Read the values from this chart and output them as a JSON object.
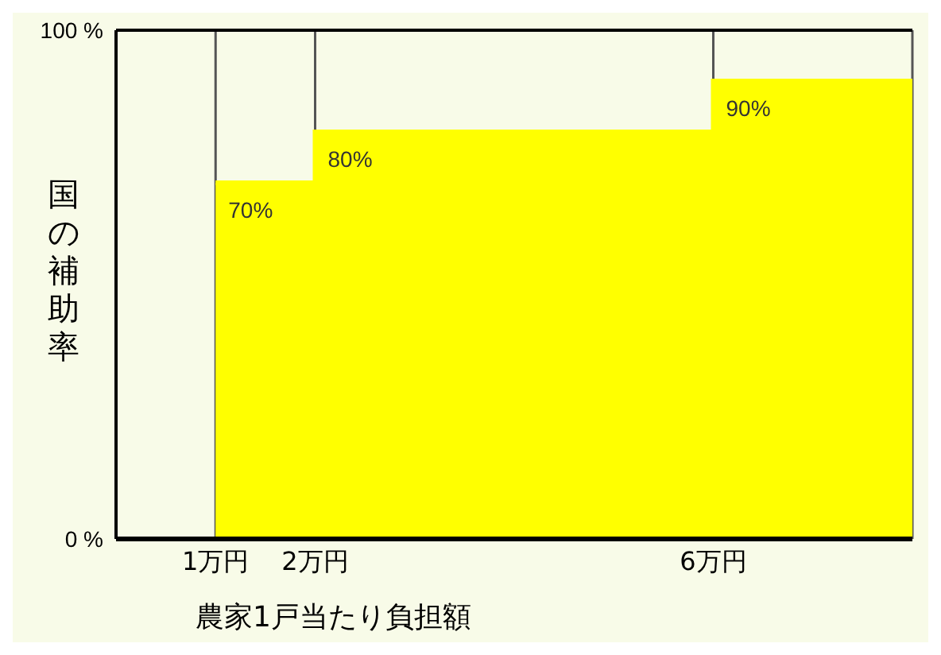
{
  "chart_data": {
    "type": "area",
    "ylabel": "国の補助率",
    "xlabel": "農家1戸当たり負担額",
    "x": [
      1,
      2,
      6,
      8
    ],
    "values": [
      70,
      80,
      90,
      90
    ],
    "value_labels": [
      "70%",
      "80%",
      "90%",
      null
    ],
    "color": "#ffff00",
    "xlim": [
      0,
      8
    ],
    "xticks": [
      {
        "value": 1,
        "label": "1万円"
      },
      {
        "value": 2,
        "label": "2万円"
      },
      {
        "value": 6,
        "label": "6万円"
      }
    ],
    "ylim": [
      0,
      100
    ],
    "yticks": [
      {
        "value": 0,
        "label": "0 %"
      },
      {
        "value": 100,
        "label": "100 %"
      }
    ],
    "grid": "x"
  }
}
